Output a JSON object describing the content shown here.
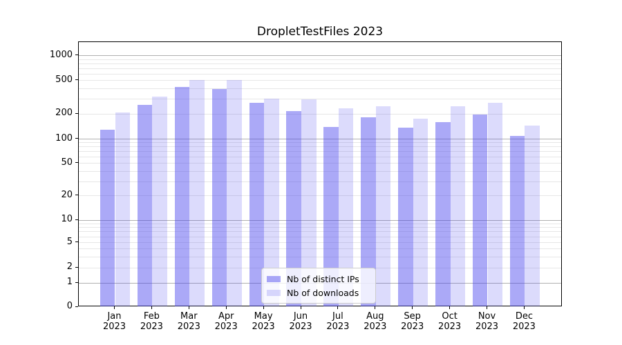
{
  "chart_data": {
    "type": "bar",
    "title": "DropletTestFiles 2023",
    "categories": [
      "Jan 2023",
      "Feb 2023",
      "Mar 2023",
      "Apr 2023",
      "May 2023",
      "Jun 2023",
      "Jul 2023",
      "Aug 2023",
      "Sep 2023",
      "Oct 2023",
      "Nov 2023",
      "Dec 2023"
    ],
    "x_tick_month": [
      "Jan",
      "Feb",
      "Mar",
      "Apr",
      "May",
      "Jun",
      "Jul",
      "Aug",
      "Sep",
      "Oct",
      "Nov",
      "Dec"
    ],
    "x_tick_year": "2023",
    "series": [
      {
        "name": "Nb of distinct IPs",
        "color": "rgba(68,64,238,0.45)",
        "values": [
          130,
          255,
          420,
          400,
          270,
          216,
          140,
          183,
          136,
          158,
          197,
          108
        ]
      },
      {
        "name": "Nb of downloads",
        "color": "rgba(68,64,238,0.19)",
        "values": [
          210,
          325,
          505,
          510,
          302,
          300,
          235,
          245,
          175,
          245,
          270,
          146
        ]
      }
    ],
    "y_axis": {
      "scale": "symlog",
      "tick_values": [
        0,
        1,
        2,
        5,
        10,
        20,
        50,
        100,
        200,
        500,
        1000
      ],
      "tick_labels": [
        "0",
        "1",
        "2",
        "5",
        "10",
        "20",
        "50",
        "100",
        "200",
        "500",
        "1000"
      ],
      "ylim": [
        0,
        1400
      ]
    },
    "grid": true,
    "minor_gridline_values": [
      2,
      3,
      4,
      5,
      6,
      7,
      8,
      9,
      20,
      30,
      40,
      50,
      60,
      70,
      80,
      90,
      200,
      300,
      400,
      500,
      600,
      700,
      800,
      900
    ],
    "major_gridline_values": [
      1,
      10,
      100,
      1000
    ],
    "legend": {
      "position": "lower center",
      "entries": [
        "Nb of distinct IPs",
        "Nb of downloads"
      ]
    },
    "colors": {
      "bar_distinct_ips": "rgba(68,64,238,0.45)",
      "bar_downloads": "rgba(68,64,238,0.19)",
      "major_grid": "#b0b0b0",
      "minor_grid": "#e7e7e7",
      "axis": "#000000",
      "background": "#ffffff"
    }
  }
}
